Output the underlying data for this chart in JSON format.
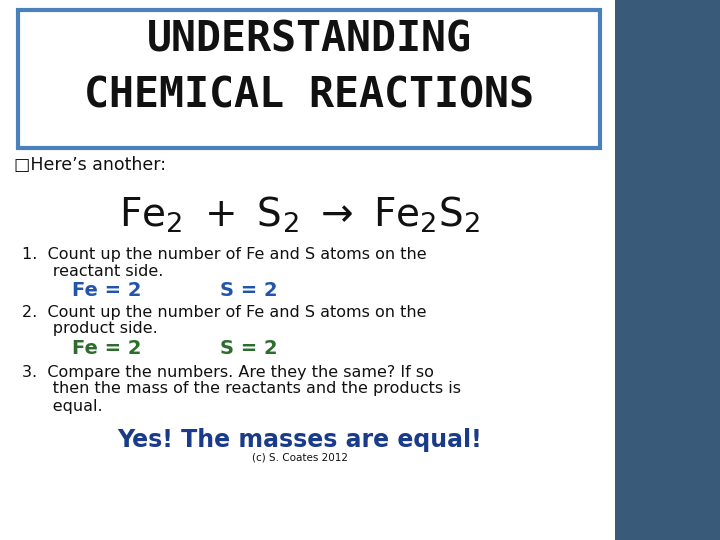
{
  "bg_color": "#f0f4f8",
  "right_panel_color": "#3a5a7a",
  "title_line1": "UNDERSTANDING",
  "title_line2": "CHEMICAL REACTIONS",
  "title_color": "#111111",
  "title_box_edge": "#4a80bb",
  "subtitle": "□Here’s another:",
  "fe2_label1": "Fe = 2",
  "s2_label1": "S = 2",
  "fe2_label2": "Fe = 2",
  "s2_label2": "S = 2",
  "point1_a": "1.  Count up the number of Fe and S atoms on the",
  "point1_b": "      reactant side.",
  "point2_a": "2.  Count up the number of Fe and S atoms on the",
  "point2_b": "      product side.",
  "point3_a": "3.  Compare the numbers. Are they the same? If so",
  "point3_b": "      then the mass of the reactants and the products is",
  "point3_c": "      equal.",
  "conclusion": "Yes! The masses are equal!",
  "copyright": "(c) S. Coates 2012",
  "fe1_color": "#2255aa",
  "s1_color": "#2255aa",
  "fe2_color": "#2d6e2d",
  "s2_color": "#2d6e2d",
  "conclusion_color": "#1a3a8a",
  "text_color": "#111111",
  "white_bg": "#ffffff",
  "main_bg": "#f8f9fb"
}
